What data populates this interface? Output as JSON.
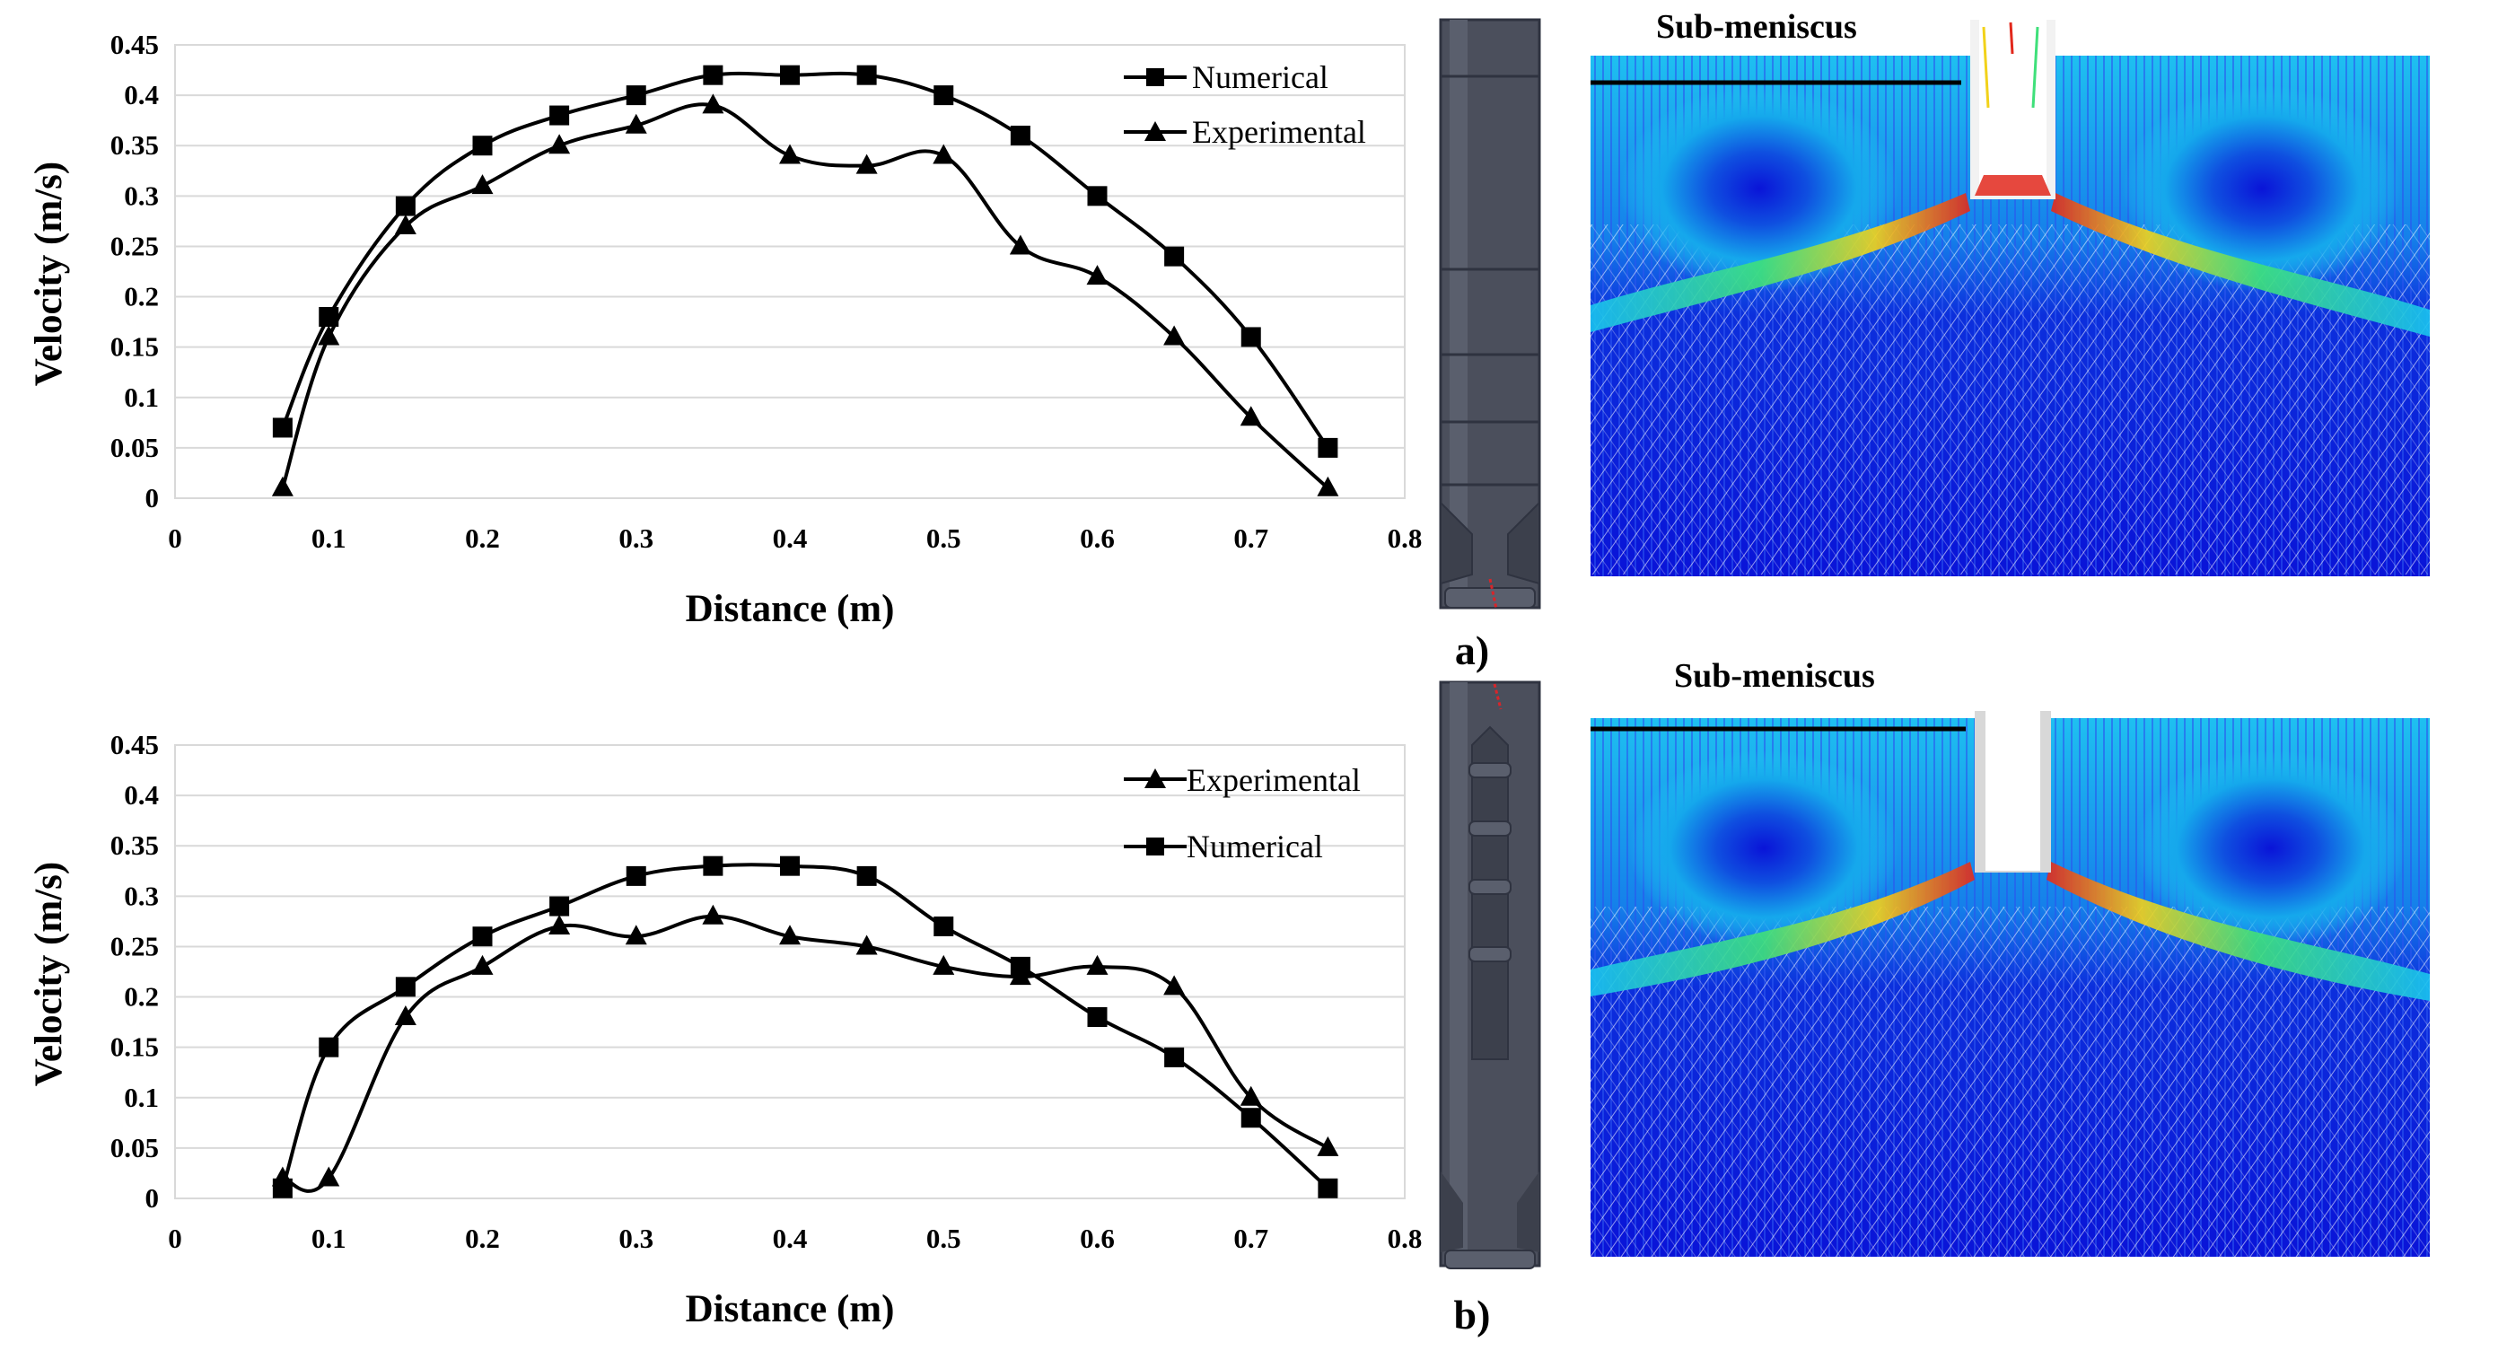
{
  "chart_data": [
    {
      "type": "line",
      "panel": "a",
      "xlabel": "Distance (m)",
      "ylabel": "Velocity (m/s)",
      "xlim": [
        0,
        0.8
      ],
      "ylim": [
        0,
        0.45
      ],
      "xticks": [
        "0",
        "0.1",
        "0.2",
        "0.3",
        "0.4",
        "0.5",
        "0.6",
        "0.7",
        "0.8"
      ],
      "yticks": [
        "0",
        "0.05",
        "0.1",
        "0.15",
        "0.2",
        "0.25",
        "0.3",
        "0.35",
        "0.4",
        "0.45"
      ],
      "legend_position": "top-right",
      "series": [
        {
          "name": "Numerical",
          "marker": "square",
          "x": [
            0.07,
            0.1,
            0.15,
            0.2,
            0.25,
            0.3,
            0.35,
            0.4,
            0.45,
            0.5,
            0.55,
            0.6,
            0.65,
            0.7,
            0.75
          ],
          "y": [
            0.07,
            0.18,
            0.29,
            0.35,
            0.38,
            0.4,
            0.42,
            0.42,
            0.42,
            0.4,
            0.36,
            0.3,
            0.24,
            0.16,
            0.05
          ]
        },
        {
          "name": "Experimental",
          "marker": "triangle",
          "x": [
            0.07,
            0.1,
            0.15,
            0.2,
            0.25,
            0.3,
            0.35,
            0.4,
            0.45,
            0.5,
            0.55,
            0.6,
            0.65,
            0.7,
            0.75
          ],
          "y": [
            0.01,
            0.16,
            0.27,
            0.31,
            0.35,
            0.37,
            0.39,
            0.34,
            0.33,
            0.34,
            0.25,
            0.22,
            0.16,
            0.08,
            0.01
          ]
        }
      ]
    },
    {
      "type": "line",
      "panel": "b",
      "xlabel": "Distance (m)",
      "ylabel": "Velocity (m/s)",
      "xlim": [
        0,
        0.8
      ],
      "ylim": [
        0,
        0.45
      ],
      "xticks": [
        "0",
        "0.1",
        "0.2",
        "0.3",
        "0.4",
        "0.5",
        "0.6",
        "0.7",
        "0.8"
      ],
      "yticks": [
        "0",
        "0.05",
        "0.1",
        "0.15",
        "0.2",
        "0.25",
        "0.3",
        "0.35",
        "0.4",
        "0.45"
      ],
      "legend_position": "top-right",
      "series": [
        {
          "name": "Experimental",
          "marker": "triangle",
          "x": [
            0.07,
            0.1,
            0.15,
            0.2,
            0.25,
            0.3,
            0.35,
            0.4,
            0.45,
            0.5,
            0.55,
            0.6,
            0.65,
            0.7,
            0.75
          ],
          "y": [
            0.02,
            0.02,
            0.18,
            0.23,
            0.27,
            0.26,
            0.28,
            0.26,
            0.25,
            0.23,
            0.22,
            0.23,
            0.21,
            0.1,
            0.05
          ]
        },
        {
          "name": "Numerical",
          "marker": "square",
          "x": [
            0.07,
            0.1,
            0.15,
            0.2,
            0.25,
            0.3,
            0.35,
            0.4,
            0.45,
            0.5,
            0.55,
            0.6,
            0.65,
            0.7,
            0.75
          ],
          "y": [
            0.01,
            0.15,
            0.21,
            0.26,
            0.29,
            0.32,
            0.33,
            0.33,
            0.32,
            0.27,
            0.23,
            0.18,
            0.14,
            0.08,
            0.01
          ]
        }
      ]
    }
  ],
  "figure": {
    "sub_meniscus_label": "Sub-meniscus",
    "caption_a": "a)",
    "caption_b": "b)"
  },
  "colors": {
    "gridline": "#d9d9d9",
    "series_line": "#000000",
    "nozzle": "#4b4f5c",
    "nozzle_edge": "#2f3340",
    "vector_low": "#0a14d8",
    "vector_mid": "#16b7ea",
    "vector_white": "#ffffff",
    "jet_hot": "#e2281c",
    "jet_warm": "#f2d21a"
  }
}
